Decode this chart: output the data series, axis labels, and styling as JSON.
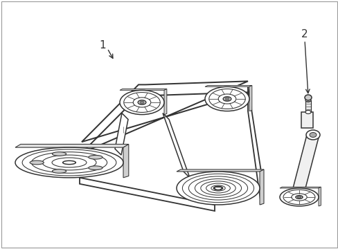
{
  "bg": "#ffffff",
  "lc": "#333333",
  "fig_w": 4.89,
  "fig_h": 3.6,
  "dpi": 100,
  "label1": "1",
  "label2": "2",
  "border_color": "#aaaaaa"
}
